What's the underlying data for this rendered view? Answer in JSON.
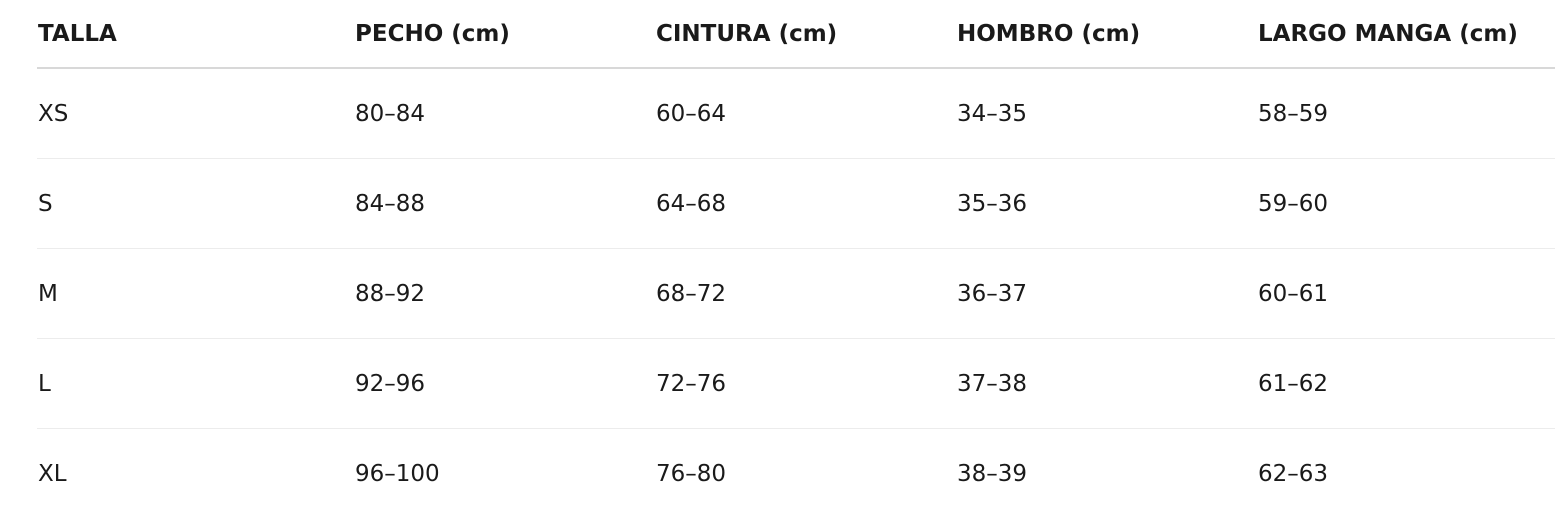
{
  "table": {
    "header": [
      "TALLA",
      "PECHO (cm)",
      "CINTURA (cm)",
      "HOMBRO (cm)",
      "LARGO MANGA (cm)"
    ],
    "rows": [
      [
        "XS",
        "80–84",
        "60–64",
        "34–35",
        "58–59"
      ],
      [
        "S",
        "84–88",
        "64–68",
        "35–36",
        "59–60"
      ],
      [
        "M",
        "88–92",
        "68–72",
        "36–37",
        "60–61"
      ],
      [
        "L",
        "92–96",
        "72–76",
        "37–38",
        "61–62"
      ],
      [
        "XL",
        "96–100",
        "76–80",
        "38–39",
        "62–63"
      ]
    ]
  }
}
